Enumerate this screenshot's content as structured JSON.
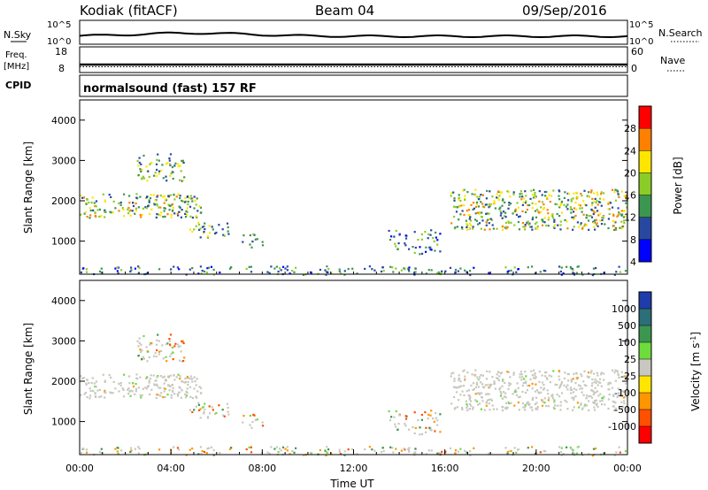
{
  "header": {
    "station": "Kodiak (fitACF)",
    "beam": "Beam 04",
    "date": "09/Sep/2016"
  },
  "params": {
    "nsky_label": "N.Sky",
    "nsky_ticks": [
      "10^5",
      "10^0"
    ],
    "nsearch_label": "N.Search",
    "freq_label": "Freq.",
    "freq_unit": "[MHz]",
    "freq_ticks": [
      "18",
      "8"
    ],
    "nave_label": "Nave",
    "nave_ticks": [
      "60",
      "0"
    ],
    "cpid_label": "CPID",
    "cpid_text": "normalsound (fast) 157 RF"
  },
  "chart_data": [
    {
      "type": "heatmap",
      "name": "power",
      "ylabel": "Slant Range [km]",
      "yticks": [
        "4000",
        "3000",
        "2000",
        "1000"
      ],
      "ylim": [
        180,
        4500
      ],
      "xlim": [
        0,
        24
      ],
      "colorbar": {
        "label": "Power [dB]",
        "ticks": [
          "28",
          "24",
          "20",
          "16",
          "12",
          "8",
          "4"
        ],
        "colors": [
          "#ff0000",
          "#ff8000",
          "#ffe600",
          "#8ccc28",
          "#3c9650",
          "#2848a0",
          "#0000ff"
        ]
      },
      "regions": [
        {
          "t0": 0.0,
          "t1": 5.3,
          "r0": 1600,
          "r1": 2200,
          "level": "strong"
        },
        {
          "t0": 2.5,
          "t1": 4.6,
          "r0": 2500,
          "r1": 3200,
          "level": "moderate"
        },
        {
          "t0": 4.8,
          "t1": 6.5,
          "r0": 1100,
          "r1": 1500,
          "level": "moderate"
        },
        {
          "t0": 7.0,
          "t1": 8.0,
          "r0": 850,
          "r1": 1200,
          "level": "weak"
        },
        {
          "t0": 13.5,
          "t1": 15.8,
          "r0": 700,
          "r1": 1300,
          "level": "weak"
        },
        {
          "t0": 16.2,
          "t1": 24.0,
          "r0": 1300,
          "r1": 2300,
          "level": "strong"
        },
        {
          "t0": 0.0,
          "t1": 24.0,
          "r0": 180,
          "r1": 400,
          "level": "weak"
        }
      ]
    },
    {
      "type": "heatmap",
      "name": "velocity",
      "xlabel": "Time UT",
      "ylabel": "Slant Range [km]",
      "yticks": [
        "4000",
        "3000",
        "2000",
        "1000"
      ],
      "xticks": [
        "00:00",
        "04:00",
        "08:00",
        "12:00",
        "16:00",
        "20:00",
        "00:00"
      ],
      "ylim": [
        180,
        4500
      ],
      "xlim": [
        0,
        24
      ],
      "colorbar": {
        "label": "Velocity [m s",
        "label_sup": "-1",
        "label_end": "]",
        "ticks": [
          "1000",
          "500",
          "100",
          "25",
          "-25",
          "-100",
          "-500",
          "-1000"
        ],
        "colors": [
          "#1e3caa",
          "#2d6e78",
          "#3c9650",
          "#6edc3c",
          "#c8c8c0",
          "#ffe600",
          "#ff9600",
          "#ff5000",
          "#ff0000"
        ]
      }
    }
  ]
}
